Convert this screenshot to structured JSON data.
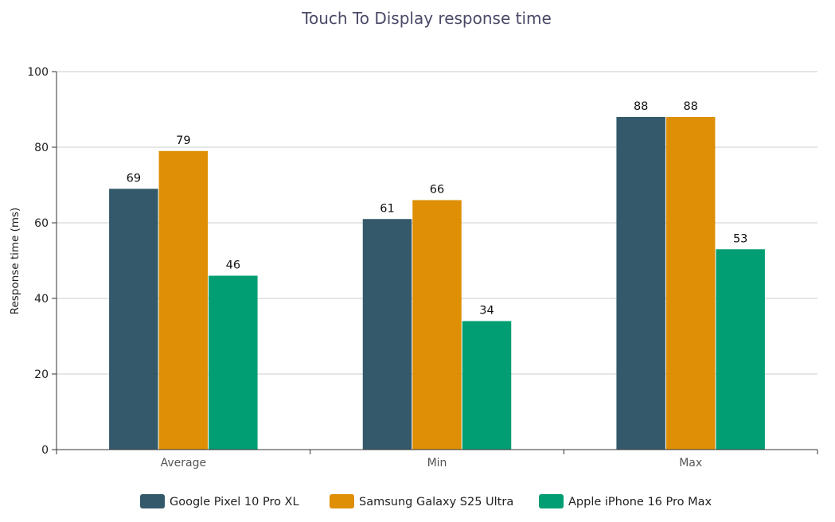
{
  "chart_data": {
    "type": "bar",
    "title": "Touch To Display response time",
    "xlabel": "",
    "ylabel": "Response time (ms)",
    "categories": [
      "Average",
      "Min",
      "Max"
    ],
    "ylim": [
      0,
      100
    ],
    "yticks": [
      0,
      20,
      40,
      60,
      80,
      100
    ],
    "grid": true,
    "legend_position": "bottom",
    "series": [
      {
        "name": "Google Pixel 10 Pro XL",
        "color": "#34596b",
        "values": [
          69,
          61,
          88
        ]
      },
      {
        "name": "Samsung Galaxy S25 Ultra",
        "color": "#de8f05",
        "values": [
          79,
          66,
          88
        ]
      },
      {
        "name": "Apple iPhone 16 Pro Max",
        "color": "#029e73",
        "values": [
          46,
          34,
          53
        ]
      }
    ],
    "data_labels": [
      [
        "69",
        "61",
        "88"
      ],
      [
        "79",
        "66",
        "88"
      ],
      [
        "46",
        "34",
        "53"
      ]
    ]
  }
}
